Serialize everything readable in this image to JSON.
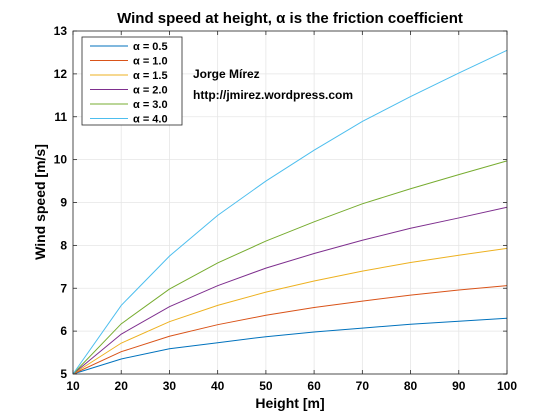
{
  "chart_data": {
    "type": "line",
    "title": "Wind speed at height, α is the friction coefficient",
    "xlabel": "Height [m]",
    "ylabel": "Wind speed [m/s]",
    "xlim": [
      10,
      100
    ],
    "ylim": [
      5,
      13
    ],
    "xticks": [
      "10",
      "20",
      "30",
      "40",
      "50",
      "60",
      "70",
      "80",
      "90",
      "100"
    ],
    "yticks": [
      "5",
      "6",
      "7",
      "8",
      "9",
      "10",
      "11",
      "12",
      "13"
    ],
    "grid": true,
    "legend_position": "top-left",
    "x": [
      10,
      20,
      30,
      40,
      50,
      60,
      70,
      80,
      90,
      100
    ],
    "series": [
      {
        "name": "α = 0.5",
        "color": "#0072BD",
        "values": [
          5.0,
          5.35,
          5.59,
          5.73,
          5.87,
          5.98,
          6.07,
          6.16,
          6.23,
          6.3
        ]
      },
      {
        "name": "α = 1.0",
        "color": "#D95319",
        "values": [
          5.0,
          5.52,
          5.88,
          6.15,
          6.37,
          6.55,
          6.7,
          6.84,
          6.96,
          7.06
        ]
      },
      {
        "name": "α = 1.5",
        "color": "#EDB120",
        "values": [
          5.0,
          5.72,
          6.22,
          6.6,
          6.91,
          7.17,
          7.4,
          7.6,
          7.77,
          7.93
        ]
      },
      {
        "name": "α = 2.0",
        "color": "#7E2F8E",
        "values": [
          5.0,
          5.93,
          6.57,
          7.06,
          7.47,
          7.81,
          8.12,
          8.4,
          8.64,
          8.89
        ]
      },
      {
        "name": "α = 3.0",
        "color": "#77AC30",
        "values": [
          5.0,
          6.17,
          6.98,
          7.59,
          8.1,
          8.55,
          8.97,
          9.32,
          9.65,
          9.97
        ]
      },
      {
        "name": "α = 4.0",
        "color": "#4DBEEE",
        "values": [
          5.0,
          6.6,
          7.75,
          8.7,
          9.5,
          10.22,
          10.89,
          11.47,
          12.02,
          12.55
        ]
      }
    ],
    "annotations": [
      "Jorge Mírez",
      "http://jmirez.wordpress.com"
    ]
  }
}
